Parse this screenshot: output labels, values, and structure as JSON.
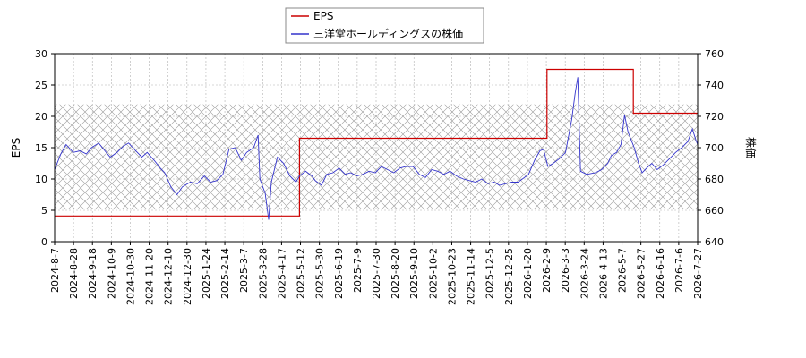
{
  "chart_data": {
    "type": "line",
    "grid": true,
    "legend_position": "top-center",
    "legend": [
      "EPS",
      "三洋堂ホールディングスの株価"
    ],
    "left_axis": {
      "label": "EPS",
      "ylim": [
        0,
        30
      ],
      "ticks": [
        "0",
        "5",
        "10",
        "15",
        "20",
        "25",
        "30"
      ]
    },
    "right_axis": {
      "label": "株価",
      "ylim": [
        640,
        760
      ],
      "ticks": [
        "640",
        "660",
        "680",
        "700",
        "720",
        "740",
        "760"
      ]
    },
    "x_axis": {
      "range": [
        "2024-08-07",
        "2026-08-07"
      ],
      "ticks": [
        "2024-8-7",
        "2024-8-28",
        "2024-9-18",
        "2024-10-9",
        "2024-10-30",
        "2024-11-20",
        "2024-12-10",
        "2024-12-30",
        "2025-1-24",
        "2025-2-14",
        "2025-3-7",
        "2025-3-28",
        "2025-4-17",
        "2025-5-12",
        "2025-5-30",
        "2025-6-19",
        "2025-7-9",
        "2025-7-30",
        "2025-8-20",
        "2025-9-10",
        "2025-10-2",
        "2025-10-23",
        "2025-11-14",
        "2025-12-5",
        "2025-12-25",
        "2026-1-20",
        "2026-2-9",
        "2026-3-3",
        "2026-3-24",
        "2026-4-13",
        "2026-5-7",
        "2026-5-27",
        "2026-6-16",
        "2026-7-6",
        "2026-7-27"
      ]
    },
    "shaded_band": {
      "axis": "left",
      "range": [
        5.2,
        21.9
      ],
      "pattern": "crosshatch"
    },
    "series": [
      {
        "name": "EPS",
        "axis": "left",
        "color": "#cc0000",
        "step": true,
        "points": [
          [
            "2024-08-07",
            4.1
          ],
          [
            "2025-05-12",
            4.1
          ],
          [
            "2025-05-12",
            16.5
          ],
          [
            "2026-02-17",
            16.5
          ],
          [
            "2026-02-17",
            27.5
          ],
          [
            "2026-05-26",
            27.5
          ],
          [
            "2026-05-26",
            20.5
          ],
          [
            "2026-08-07",
            20.5
          ]
        ]
      },
      {
        "name": "三洋堂ホールディングスの株価",
        "axis": "right",
        "color": "#3333cc",
        "step": false,
        "points": [
          [
            "2024-08-07",
            686
          ],
          [
            "2024-08-14",
            696
          ],
          [
            "2024-08-20",
            702
          ],
          [
            "2024-08-28",
            697
          ],
          [
            "2024-09-05",
            698
          ],
          [
            "2024-09-12",
            696
          ],
          [
            "2024-09-18",
            700
          ],
          [
            "2024-09-26",
            703
          ],
          [
            "2024-10-03",
            698
          ],
          [
            "2024-10-09",
            694
          ],
          [
            "2024-10-17",
            697
          ],
          [
            "2024-10-24",
            701
          ],
          [
            "2024-10-30",
            703
          ],
          [
            "2024-11-07",
            698
          ],
          [
            "2024-11-14",
            694
          ],
          [
            "2024-11-20",
            697
          ],
          [
            "2024-11-28",
            692
          ],
          [
            "2024-12-05",
            687
          ],
          [
            "2024-12-10",
            684
          ],
          [
            "2024-12-17",
            675
          ],
          [
            "2024-12-24",
            670
          ],
          [
            "2024-12-30",
            675
          ],
          [
            "2025-01-08",
            678
          ],
          [
            "2025-01-16",
            677
          ],
          [
            "2025-01-24",
            682
          ],
          [
            "2025-01-31",
            678
          ],
          [
            "2025-02-07",
            679
          ],
          [
            "2025-02-14",
            683
          ],
          [
            "2025-02-21",
            699
          ],
          [
            "2025-02-28",
            700
          ],
          [
            "2025-03-07",
            692
          ],
          [
            "2025-03-13",
            697
          ],
          [
            "2025-03-21",
            700
          ],
          [
            "2025-03-26",
            708
          ],
          [
            "2025-03-28",
            680
          ],
          [
            "2025-04-03",
            671
          ],
          [
            "2025-04-07",
            654
          ],
          [
            "2025-04-10",
            678
          ],
          [
            "2025-04-17",
            694
          ],
          [
            "2025-04-24",
            690
          ],
          [
            "2025-05-01",
            682
          ],
          [
            "2025-05-08",
            678
          ],
          [
            "2025-05-12",
            682
          ],
          [
            "2025-05-19",
            685
          ],
          [
            "2025-05-26",
            682
          ],
          [
            "2025-05-30",
            679
          ],
          [
            "2025-06-06",
            676
          ],
          [
            "2025-06-12",
            683
          ],
          [
            "2025-06-19",
            684
          ],
          [
            "2025-06-26",
            687
          ],
          [
            "2025-07-03",
            683
          ],
          [
            "2025-07-09",
            684
          ],
          [
            "2025-07-16",
            682
          ],
          [
            "2025-07-23",
            683
          ],
          [
            "2025-07-30",
            685
          ],
          [
            "2025-08-06",
            684
          ],
          [
            "2025-08-13",
            688
          ],
          [
            "2025-08-20",
            686
          ],
          [
            "2025-08-27",
            684
          ],
          [
            "2025-09-03",
            687
          ],
          [
            "2025-09-10",
            688
          ],
          [
            "2025-09-18",
            688
          ],
          [
            "2025-09-25",
            683
          ],
          [
            "2025-10-02",
            681
          ],
          [
            "2025-10-09",
            686
          ],
          [
            "2025-10-16",
            685
          ],
          [
            "2025-10-23",
            683
          ],
          [
            "2025-10-30",
            685
          ],
          [
            "2025-11-06",
            682
          ],
          [
            "2025-11-14",
            680
          ],
          [
            "2025-11-21",
            679
          ],
          [
            "2025-11-28",
            678
          ],
          [
            "2025-12-05",
            680
          ],
          [
            "2025-12-12",
            677
          ],
          [
            "2025-12-19",
            678
          ],
          [
            "2025-12-25",
            676
          ],
          [
            "2026-01-08",
            678
          ],
          [
            "2026-01-15",
            678
          ],
          [
            "2026-01-20",
            680
          ],
          [
            "2026-01-27",
            683
          ],
          [
            "2026-02-03",
            692
          ],
          [
            "2026-02-09",
            698
          ],
          [
            "2026-02-13",
            699
          ],
          [
            "2026-02-18",
            688
          ],
          [
            "2026-02-24",
            690
          ],
          [
            "2026-03-03",
            693
          ],
          [
            "2026-03-10",
            697
          ],
          [
            "2026-03-17",
            718
          ],
          [
            "2026-03-21",
            735
          ],
          [
            "2026-03-24",
            745
          ],
          [
            "2026-03-27",
            685
          ],
          [
            "2026-04-03",
            683
          ],
          [
            "2026-04-13",
            684
          ],
          [
            "2026-04-20",
            686
          ],
          [
            "2026-04-27",
            690
          ],
          [
            "2026-05-01",
            695
          ],
          [
            "2026-05-07",
            697
          ],
          [
            "2026-05-12",
            702
          ],
          [
            "2026-05-16",
            721
          ],
          [
            "2026-05-20",
            710
          ],
          [
            "2026-05-27",
            700
          ],
          [
            "2026-06-01",
            690
          ],
          [
            "2026-06-05",
            684
          ],
          [
            "2026-06-10",
            687
          ],
          [
            "2026-06-16",
            690
          ],
          [
            "2026-06-22",
            686
          ],
          [
            "2026-06-29",
            689
          ],
          [
            "2026-07-06",
            693
          ],
          [
            "2026-07-13",
            697
          ],
          [
            "2026-07-20",
            700
          ],
          [
            "2026-07-27",
            704
          ],
          [
            "2026-08-01",
            712
          ],
          [
            "2026-08-05",
            705
          ],
          [
            "2026-08-07",
            702
          ]
        ]
      }
    ]
  }
}
